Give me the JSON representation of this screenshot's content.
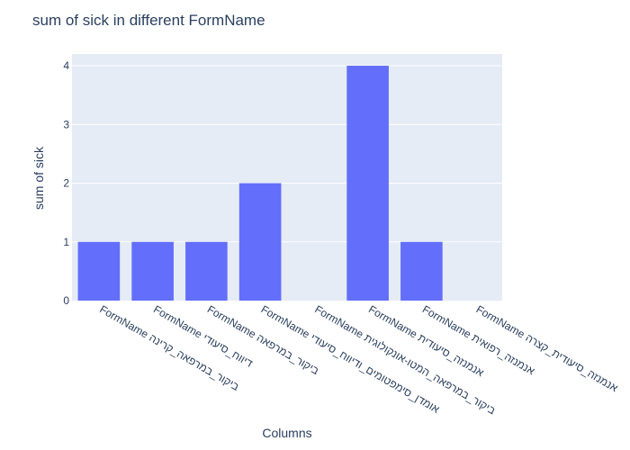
{
  "chart_data": {
    "type": "bar",
    "title": "sum of sick in different FormName",
    "xlabel": "Columns",
    "ylabel": "sum of sick",
    "categories": [
      "FormName ביקור_במרפאה_קרינה",
      "FormName דיווח_סיעודי",
      "FormName ביקור_במרפאה",
      "FormName אומדן_סימפטומים_ודיווח_סיעודי",
      "FormName ביקור_במרפאה_המטו-אונקולוגית",
      "FormName אנמנזה_סיעודית",
      "FormName אנמנזה_רפואית",
      "FormName אנמנזה_סיעודית_קצרה"
    ],
    "values": [
      1,
      1,
      1,
      2,
      0,
      4,
      1,
      0
    ],
    "ylim": [
      0,
      4.2
    ],
    "yticks": [
      0,
      1,
      2,
      3,
      4
    ],
    "grid": true,
    "colors": {
      "bar": "#636efa",
      "plot_bg": "#e5ecf6",
      "grid": "#ffffff",
      "text": "#2a3f5f"
    }
  }
}
